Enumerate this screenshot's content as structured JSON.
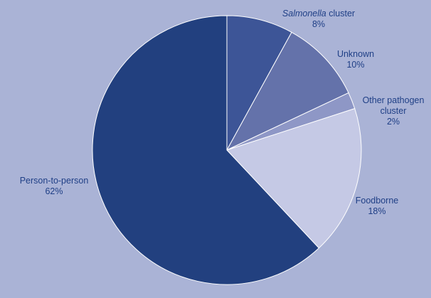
{
  "chart_data": {
    "type": "pie",
    "slices": [
      {
        "name": "Salmonella cluster",
        "name_italic_part": "Salmonella",
        "name_rest": " cluster",
        "value": 8,
        "label": "8%",
        "color": "#3d5597"
      },
      {
        "name": "Unknown",
        "value": 10,
        "label": "10%",
        "color": "#6472aa"
      },
      {
        "name": "Other pathogen cluster",
        "name_lines": [
          "Other pathogen",
          "cluster"
        ],
        "value": 2,
        "label": "2%",
        "color": "#8e97c6"
      },
      {
        "name": "Foodborne",
        "value": 18,
        "label": "18%",
        "color": "#c5c9e5"
      },
      {
        "name": "Person-to-person",
        "value": 62,
        "label": "62%",
        "color": "#22407f"
      }
    ],
    "start_direction": "top",
    "direction": "clockwise",
    "slice_border_color": "#ffffff"
  },
  "background_color": "#aab3d6",
  "label_color": "#1f3f86"
}
